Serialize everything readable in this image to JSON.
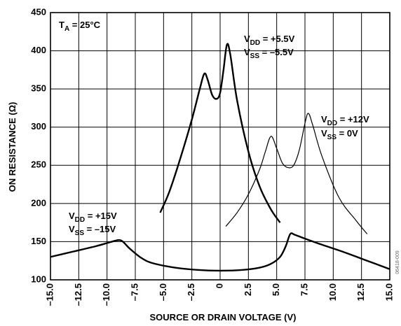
{
  "chart_data": {
    "type": "line",
    "title": "",
    "xlabel": "SOURCE OR DRAIN VOLTAGE (V)",
    "ylabel": "ON RESISTANCE (Ω)",
    "xlim": [
      -15,
      15
    ],
    "ylim": [
      100,
      450
    ],
    "xticks": [
      "–15.0",
      "–12.5",
      "–10.0",
      "–7.5",
      "–5.0",
      "–2.5",
      "0",
      "2.5",
      "5.0",
      "7.5",
      "10.0",
      "12.5",
      "15.0"
    ],
    "yticks": [
      "100",
      "150",
      "200",
      "250",
      "300",
      "350",
      "400",
      "450"
    ],
    "grid": true,
    "annotations": {
      "ta": {
        "main": "T",
        "sub": "A",
        "rest": " = 25°C"
      },
      "dual55": {
        "line1": {
          "main": "V",
          "sub": "DD",
          "rest": " = +5.5V"
        },
        "line2": {
          "main": "V",
          "sub": "SS",
          "rest": " = –5.5V"
        }
      },
      "single12": {
        "line1": {
          "main": "V",
          "sub": "DD",
          "rest": " = +12V"
        },
        "line2": {
          "main": "V",
          "sub": "SS",
          "rest": " = 0V"
        }
      },
      "dual15": {
        "line1": {
          "main": "V",
          "sub": "DD",
          "rest": " = +15V"
        },
        "line2": {
          "main": "V",
          "sub": "SS",
          "rest": " = –15V"
        }
      }
    },
    "figure_code": "06418-009",
    "series": [
      {
        "stroke": "#000000",
        "width": 2.4,
        "x": [
          -15.0,
          -13.0,
          -11.0,
          -9.8,
          -9.0,
          -8.6,
          -8.0,
          -7.0,
          -6.0,
          -4.0,
          -2.0,
          0.0,
          2.0,
          3.5,
          4.5,
          5.3,
          5.8,
          6.2,
          6.6,
          7.5,
          9.0,
          11.0,
          13.0,
          15.0
        ],
        "y": [
          130,
          137,
          144,
          149,
          152,
          150,
          141,
          129,
          122,
          116,
          113,
          112,
          113,
          116,
          121,
          130,
          144,
          160,
          159,
          154,
          146,
          136,
          125,
          114
        ]
      },
      {
        "stroke": "#000000",
        "width": 2.4,
        "x": [
          -5.3,
          -4.5,
          -3.5,
          -2.5,
          -1.8,
          -1.4,
          -1.1,
          -0.7,
          -0.3,
          0.0,
          0.3,
          0.6,
          0.9,
          1.5,
          2.5,
          3.5,
          4.5,
          5.3
        ],
        "y": [
          188,
          215,
          260,
          310,
          350,
          370,
          362,
          342,
          337,
          345,
          375,
          408,
          395,
          335,
          268,
          222,
          192,
          175
        ]
      },
      {
        "stroke": "#000000",
        "width": 1.2,
        "x": [
          0.5,
          1.5,
          2.5,
          3.5,
          4.0,
          4.5,
          5.0,
          5.5,
          6.0,
          6.5,
          7.0,
          7.5,
          7.8,
          8.2,
          9.0,
          10.5,
          12.0,
          13.0
        ],
        "y": [
          170,
          188,
          212,
          245,
          268,
          288,
          272,
          253,
          247,
          250,
          270,
          305,
          318,
          302,
          262,
          208,
          178,
          160
        ]
      }
    ]
  }
}
